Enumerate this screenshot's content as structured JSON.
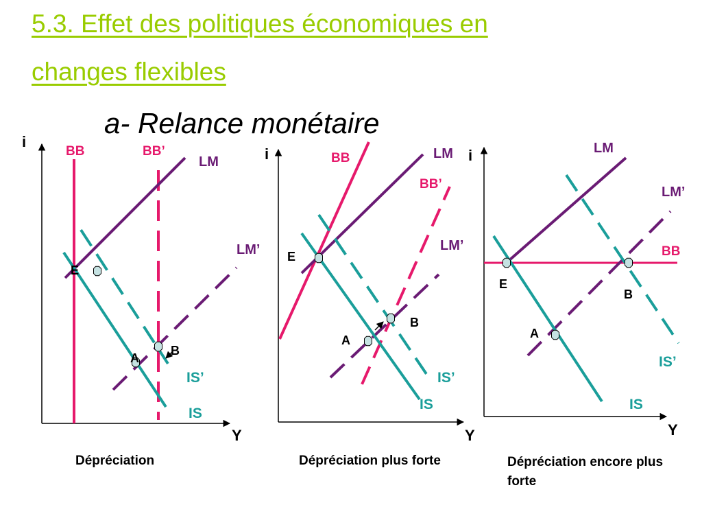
{
  "title": {
    "line1": "5.3. Effet des politiques économiques en",
    "line2": "changes flexibles"
  },
  "subtitle": "a- Relance monétaire",
  "colors": {
    "title": "#99cc00",
    "lm": "#6a1b74",
    "is": "#1a9e9a",
    "bb": "#e6196b",
    "point_fill": "#c5e2e2"
  },
  "panels": [
    {
      "caption": "Dépréciation",
      "axis_y": "i",
      "axis_x": "Y",
      "labels": {
        "bb": "BB",
        "bb_prime": "BB’",
        "lm": "LM",
        "lm_prime": "LM’",
        "is": "IS",
        "is_prime": "IS’"
      },
      "points": [
        "E",
        "A",
        "B"
      ]
    },
    {
      "caption": "Dépréciation plus forte",
      "axis_y": "i",
      "axis_x": "Y",
      "labels": {
        "bb": "BB",
        "bb_prime": "BB’",
        "lm": "LM",
        "lm_prime": "LM’",
        "is": "IS",
        "is_prime": "IS’"
      },
      "points": [
        "E",
        "A",
        "B"
      ]
    },
    {
      "caption": "Dépréciation encore plus forte",
      "axis_y": "i",
      "axis_x": "Y",
      "labels": {
        "bb": "BB",
        "lm": "LM",
        "lm_prime": "LM’",
        "is": "IS",
        "is_prime": "IS’"
      },
      "points": [
        "E",
        "A",
        "B"
      ]
    }
  ]
}
